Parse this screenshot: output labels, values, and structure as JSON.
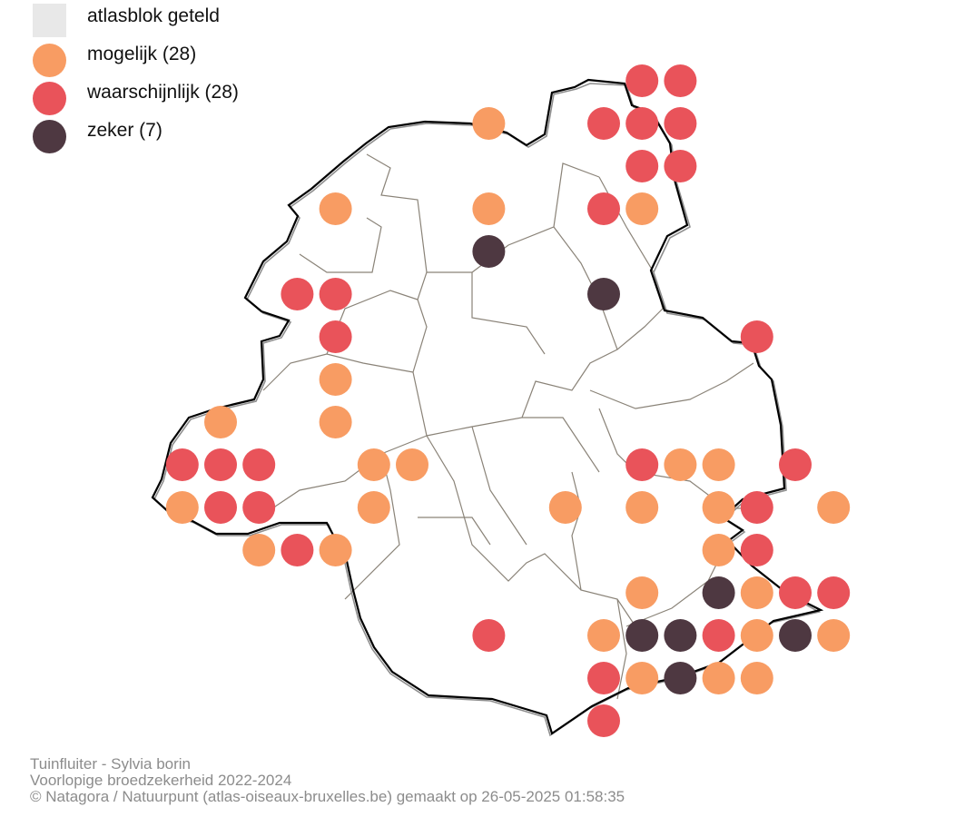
{
  "legend": {
    "items": [
      {
        "label": "atlasblok geteld",
        "color": "#e8e8e8",
        "shape": "square"
      },
      {
        "label": "mogelijk (28)",
        "color": "#f89c63",
        "shape": "circle"
      },
      {
        "label": "waarschijnlijk (28)",
        "color": "#e9535a",
        "shape": "circle"
      },
      {
        "label": "zeker (7)",
        "color": "#4e3841",
        "shape": "circle"
      }
    ]
  },
  "credits": {
    "species": "Tuinfluiter - Sylvia borin",
    "subtitle": "Voorlopige broedzekerheid 2022-2024",
    "copyright": "© Natagora / Natuurpunt (atlas-oiseaux-bruxelles.be) gemaakt op 26-05-2025 01:58:35"
  },
  "map_data": {
    "grid_note": "atlas blocks indexed by column/row",
    "observations": [
      {
        "col": 11,
        "row": 0,
        "status": "waarschijnlijk"
      },
      {
        "col": 12,
        "row": 0,
        "status": "waarschijnlijk"
      },
      {
        "col": 7,
        "row": 1,
        "status": "mogelijk"
      },
      {
        "col": 10,
        "row": 1,
        "status": "waarschijnlijk"
      },
      {
        "col": 11,
        "row": 1,
        "status": "waarschijnlijk"
      },
      {
        "col": 12,
        "row": 1,
        "status": "waarschijnlijk"
      },
      {
        "col": 11,
        "row": 2,
        "status": "waarschijnlijk"
      },
      {
        "col": 12,
        "row": 2,
        "status": "waarschijnlijk"
      },
      {
        "col": 3,
        "row": 3,
        "status": "mogelijk"
      },
      {
        "col": 7,
        "row": 3,
        "status": "mogelijk"
      },
      {
        "col": 10,
        "row": 3,
        "status": "waarschijnlijk"
      },
      {
        "col": 11,
        "row": 3,
        "status": "mogelijk"
      },
      {
        "col": 7,
        "row": 4,
        "status": "zeker"
      },
      {
        "col": 2,
        "row": 5,
        "status": "waarschijnlijk"
      },
      {
        "col": 3,
        "row": 5,
        "status": "waarschijnlijk"
      },
      {
        "col": 10,
        "row": 5,
        "status": "zeker"
      },
      {
        "col": 3,
        "row": 6,
        "status": "waarschijnlijk"
      },
      {
        "col": 14,
        "row": 6,
        "status": "waarschijnlijk"
      },
      {
        "col": 3,
        "row": 7,
        "status": "mogelijk"
      },
      {
        "col": 0,
        "row": 8,
        "status": "mogelijk"
      },
      {
        "col": 3,
        "row": 8,
        "status": "mogelijk"
      },
      {
        "col": -1,
        "row": 9,
        "status": "waarschijnlijk"
      },
      {
        "col": 0,
        "row": 9,
        "status": "waarschijnlijk"
      },
      {
        "col": 1,
        "row": 9,
        "status": "waarschijnlijk"
      },
      {
        "col": 4,
        "row": 9,
        "status": "mogelijk"
      },
      {
        "col": 5,
        "row": 9,
        "status": "mogelijk"
      },
      {
        "col": 11,
        "row": 9,
        "status": "waarschijnlijk"
      },
      {
        "col": 12,
        "row": 9,
        "status": "mogelijk"
      },
      {
        "col": 13,
        "row": 9,
        "status": "mogelijk"
      },
      {
        "col": 15,
        "row": 9,
        "status": "waarschijnlijk"
      },
      {
        "col": -1,
        "row": 10,
        "status": "mogelijk"
      },
      {
        "col": 0,
        "row": 10,
        "status": "waarschijnlijk"
      },
      {
        "col": 1,
        "row": 10,
        "status": "waarschijnlijk"
      },
      {
        "col": 4,
        "row": 10,
        "status": "mogelijk"
      },
      {
        "col": 9,
        "row": 10,
        "status": "mogelijk"
      },
      {
        "col": 11,
        "row": 10,
        "status": "mogelijk"
      },
      {
        "col": 13,
        "row": 10,
        "status": "mogelijk"
      },
      {
        "col": 14,
        "row": 10,
        "status": "waarschijnlijk"
      },
      {
        "col": 16,
        "row": 10,
        "status": "mogelijk"
      },
      {
        "col": 1,
        "row": 11,
        "status": "mogelijk"
      },
      {
        "col": 2,
        "row": 11,
        "status": "waarschijnlijk"
      },
      {
        "col": 3,
        "row": 11,
        "status": "mogelijk"
      },
      {
        "col": 13,
        "row": 11,
        "status": "mogelijk"
      },
      {
        "col": 14,
        "row": 11,
        "status": "waarschijnlijk"
      },
      {
        "col": 11,
        "row": 12,
        "status": "mogelijk"
      },
      {
        "col": 13,
        "row": 12,
        "status": "zeker"
      },
      {
        "col": 14,
        "row": 12,
        "status": "mogelijk"
      },
      {
        "col": 15,
        "row": 12,
        "status": "waarschijnlijk"
      },
      {
        "col": 16,
        "row": 12,
        "status": "waarschijnlijk"
      },
      {
        "col": 7,
        "row": 13,
        "status": "waarschijnlijk"
      },
      {
        "col": 10,
        "row": 13,
        "status": "mogelijk"
      },
      {
        "col": 11,
        "row": 13,
        "status": "zeker"
      },
      {
        "col": 12,
        "row": 13,
        "status": "zeker"
      },
      {
        "col": 13,
        "row": 13,
        "status": "waarschijnlijk"
      },
      {
        "col": 14,
        "row": 13,
        "status": "mogelijk"
      },
      {
        "col": 15,
        "row": 13,
        "status": "zeker"
      },
      {
        "col": 16,
        "row": 13,
        "status": "mogelijk"
      },
      {
        "col": 10,
        "row": 14,
        "status": "waarschijnlijk"
      },
      {
        "col": 11,
        "row": 14,
        "status": "mogelijk"
      },
      {
        "col": 12,
        "row": 14,
        "status": "zeker"
      },
      {
        "col": 13,
        "row": 14,
        "status": "mogelijk"
      },
      {
        "col": 14,
        "row": 14,
        "status": "mogelijk"
      },
      {
        "col": 10,
        "row": 15,
        "status": "waarschijnlijk"
      }
    ]
  }
}
